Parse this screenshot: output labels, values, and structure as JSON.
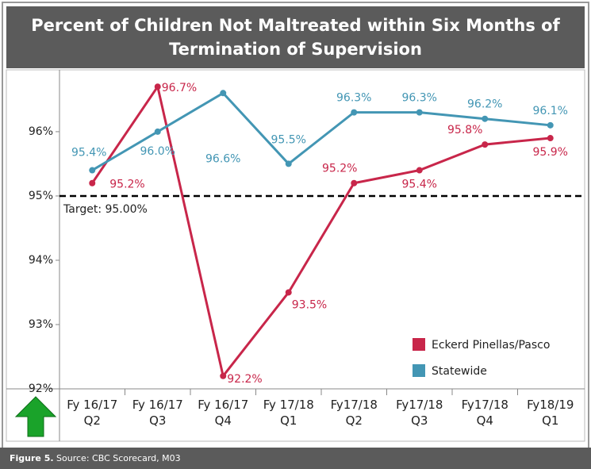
{
  "chart_data": {
    "type": "line",
    "title": "Percent of Children Not Maltreated within Six Months of Termination of Supervision",
    "categories": [
      "Fy 16/17\nQ2",
      "Fy 16/17\nQ3",
      "Fy 16/17\nQ4",
      "Fy 17/18\nQ1",
      "Fy17/18\nQ2",
      "Fy17/18\nQ3",
      "Fy17/18\nQ4",
      "Fy18/19\nQ1"
    ],
    "series": [
      {
        "name": "Eckerd Pinellas/Pasco",
        "color": "#c8264a",
        "values": [
          95.2,
          96.7,
          92.2,
          93.5,
          95.2,
          95.4,
          95.8,
          95.9
        ],
        "value_labels": [
          "95.2%",
          "96.7%",
          "92.2%",
          "93.5%",
          "95.2%",
          "95.4%",
          "95.8%",
          "95.9%"
        ]
      },
      {
        "name": "Statewide",
        "color": "#4396b4",
        "values": [
          95.4,
          96.0,
          96.6,
          95.5,
          96.3,
          96.3,
          96.2,
          96.1
        ],
        "value_labels": [
          "95.4%",
          "96.0%",
          "96.6%",
          "95.5%",
          "96.3%",
          "96.3%",
          "96.2%",
          "96.1%"
        ]
      }
    ],
    "ylim": [
      92,
      96.9
    ],
    "yticks": [
      {
        "value": 92,
        "label": "92%"
      },
      {
        "value": 93,
        "label": "93%"
      },
      {
        "value": 94,
        "label": "94%"
      },
      {
        "value": 95,
        "label": "95%"
      },
      {
        "value": 96,
        "label": "96%"
      }
    ],
    "target": {
      "value": 95,
      "label": "Target: 95.00%"
    },
    "legend": "lower right",
    "figure_label": "Figure 5.",
    "source": "Source: CBC Scorecard, M03"
  }
}
